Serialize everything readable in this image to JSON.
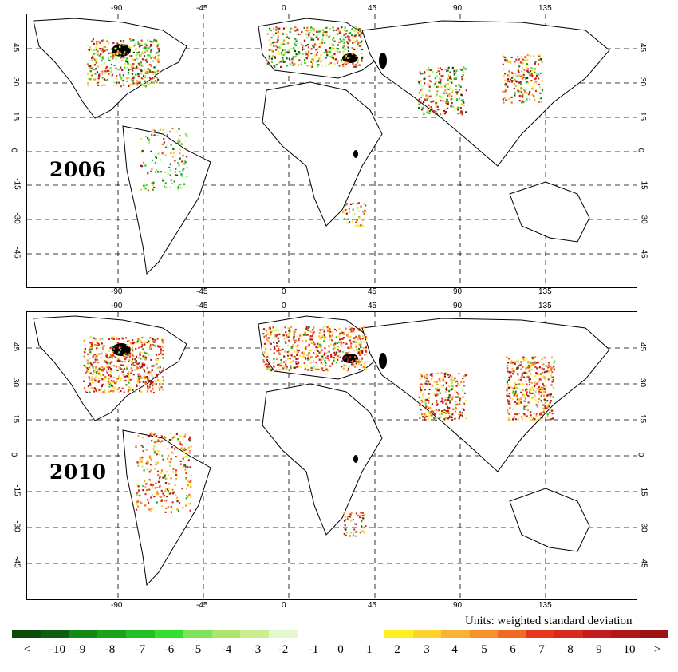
{
  "panels": [
    {
      "year": "2006"
    },
    {
      "year": "2010"
    }
  ],
  "longitude_ticks": [
    "-90",
    "-45",
    "0",
    "45",
    "90",
    "135"
  ],
  "latitude_ticks": [
    "45",
    "30",
    "15",
    "0",
    "-15",
    "-30",
    "-45"
  ],
  "legend": {
    "units_label": "Units: weighted standard deviation",
    "negative_colors": [
      "#0b4a0b",
      "#0d5f10",
      "#138a14",
      "#1aa31a",
      "#22c022",
      "#35dd2c",
      "#7fe35a",
      "#a9e66b",
      "#c9ef8f",
      "#e4f7cf"
    ],
    "positive_colors": [
      "#ffee22",
      "#ffd22e",
      "#f9b233",
      "#f7922b",
      "#f26a22",
      "#e8361e",
      "#d92a1e",
      "#c41c1c",
      "#b01818",
      "#9e1414"
    ],
    "labels": [
      "<",
      "-10",
      "-9",
      "-8",
      "-7",
      "-6",
      "-5",
      "-4",
      "-3",
      "-2",
      "-1",
      "0",
      "1",
      "2",
      "3",
      "4",
      "5",
      "6",
      "7",
      "8",
      "9",
      "10",
      ">"
    ]
  }
}
